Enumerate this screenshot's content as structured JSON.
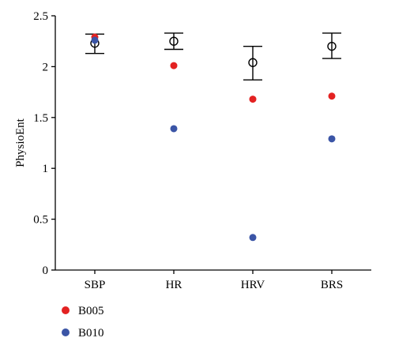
{
  "chart_data": {
    "type": "scatter",
    "categories": [
      "SBP",
      "HR",
      "HRV",
      "BRS"
    ],
    "ylabel": "PhysioEnt",
    "xlabel": "",
    "ylim": [
      0,
      2.5
    ],
    "yticks": [
      0,
      0.5,
      1,
      1.5,
      2,
      2.5
    ],
    "ytick_labels": [
      "0",
      "0.5",
      "1",
      "1.5",
      "2",
      "2.5"
    ],
    "mean_with_error": {
      "mean": [
        2.23,
        2.25,
        2.04,
        2.2
      ],
      "lower": [
        2.13,
        2.17,
        1.87,
        2.08
      ],
      "upper": [
        2.32,
        2.33,
        2.2,
        2.33
      ]
    },
    "series": [
      {
        "name": "B005",
        "color": "#e32222",
        "values": [
          2.29,
          2.01,
          1.68,
          1.71
        ]
      },
      {
        "name": "B010",
        "color": "#3b55a6",
        "values": [
          2.26,
          1.39,
          0.32,
          1.29
        ]
      }
    ],
    "legend_position": "bottom-left",
    "grid": false
  }
}
